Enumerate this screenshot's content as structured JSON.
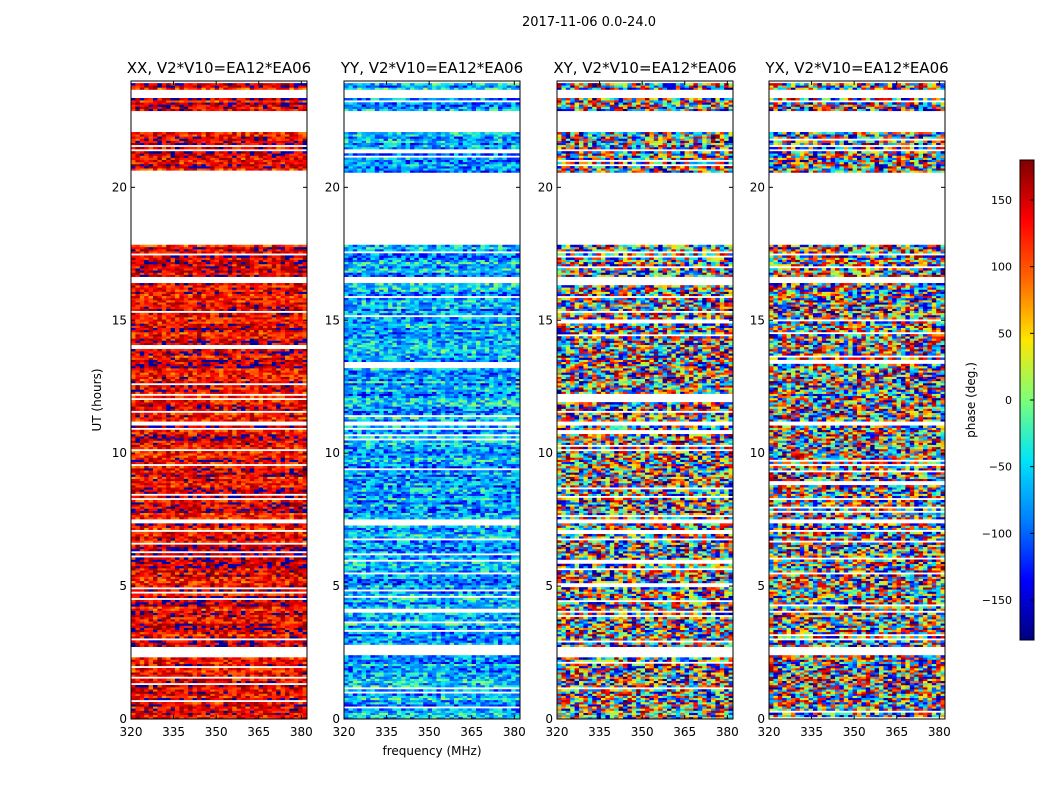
{
  "chart_data": {
    "type": "heatmap",
    "title": "2017-11-06 0.0-24.0",
    "xlabel": "frequency (MHz)",
    "ylabel": "UT (hours)",
    "xlim": [
      320,
      382
    ],
    "ylim": [
      0,
      24
    ],
    "xticks": [
      320,
      335,
      350,
      365,
      380
    ],
    "yticks": [
      0,
      5,
      10,
      15,
      20
    ],
    "colorbar": {
      "label": "phase (deg.)",
      "range": [
        -180,
        180
      ],
      "ticks": [
        -150,
        -100,
        -50,
        0,
        50,
        100,
        150
      ],
      "colors": [
        "#000080",
        "#0000ff",
        "#0080ff",
        "#00e4f8",
        "#7cff79",
        "#ffe600",
        "#ff6800",
        "#ff0000",
        "#800000"
      ]
    },
    "blank_bands_hours": [
      [
        2.4,
        2.7
      ],
      [
        7.3,
        7.5
      ],
      [
        11.0,
        11.2
      ],
      [
        16.4,
        16.6
      ],
      [
        17.8,
        20.5
      ],
      [
        21.3,
        21.4
      ],
      [
        22.0,
        22.8
      ],
      [
        23.3,
        23.6
      ]
    ],
    "panels": [
      {
        "title": "XX, V2*V10=EA12*EA06",
        "mean_phase": 140,
        "spread": 50
      },
      {
        "title": "YY, V2*V10=EA12*EA06",
        "mean_phase": -70,
        "spread": 60
      },
      {
        "title": "XY, V2*V10=EA12*EA06",
        "mean_phase": 0,
        "spread": 180
      },
      {
        "title": "YX, V2*V10=EA12*EA06",
        "mean_phase": 0,
        "spread": 180
      }
    ]
  }
}
